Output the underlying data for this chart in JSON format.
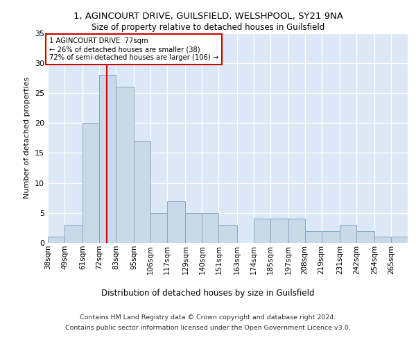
{
  "title1": "1, AGINCOURT DRIVE, GUILSFIELD, WELSHPOOL, SY21 9NA",
  "title2": "Size of property relative to detached houses in Guilsfield",
  "xlabel": "Distribution of detached houses by size in Guilsfield",
  "ylabel": "Number of detached properties",
  "categories": [
    "38sqm",
    "49sqm",
    "61sqm",
    "72sqm",
    "83sqm",
    "95sqm",
    "106sqm",
    "117sqm",
    "129sqm",
    "140sqm",
    "151sqm",
    "163sqm",
    "174sqm",
    "185sqm",
    "197sqm",
    "208sqm",
    "219sqm",
    "231sqm",
    "242sqm",
    "254sqm",
    "265sqm"
  ],
  "values": [
    1,
    3,
    20,
    28,
    26,
    17,
    5,
    7,
    5,
    5,
    3,
    0,
    4,
    4,
    4,
    2,
    2,
    3,
    2,
    1,
    1
  ],
  "bar_color": "#c9d9e8",
  "bar_edge_color": "#7fa8c9",
  "red_line_x": 77,
  "bin_edges": [
    38,
    49,
    61,
    72,
    83,
    95,
    106,
    117,
    129,
    140,
    151,
    163,
    174,
    185,
    197,
    208,
    219,
    231,
    242,
    254,
    265,
    276
  ],
  "annotation_text": "1 AGINCOURT DRIVE: 77sqm\n← 26% of detached houses are smaller (38)\n72% of semi-detached houses are larger (106) →",
  "annotation_box_color": "#ffffff",
  "annotation_box_edge": "#cc0000",
  "ylim": [
    0,
    35
  ],
  "yticks": [
    0,
    5,
    10,
    15,
    20,
    25,
    30,
    35
  ],
  "footer1": "Contains HM Land Registry data © Crown copyright and database right 2024.",
  "footer2": "Contains public sector information licensed under the Open Government Licence v3.0.",
  "background_color": "#dce8f5",
  "grid_color": "#ffffff"
}
